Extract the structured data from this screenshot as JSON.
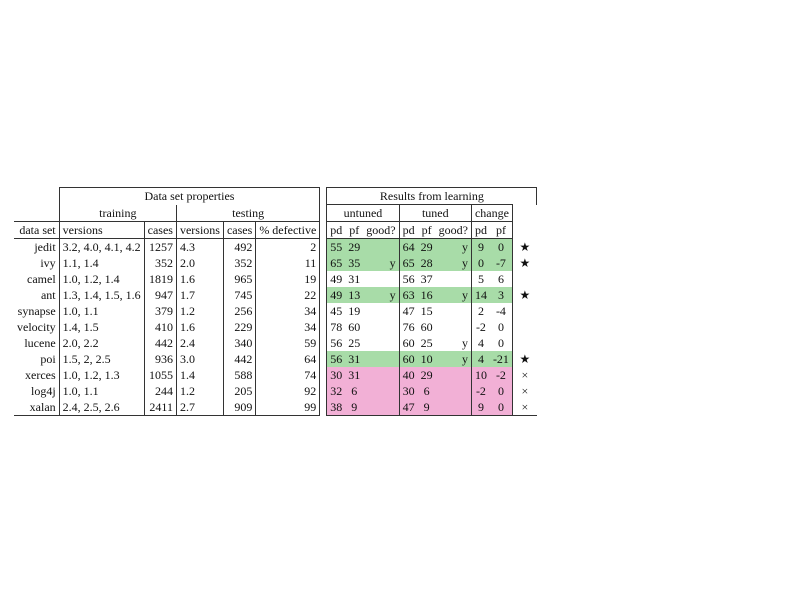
{
  "headers": {
    "data_set_properties": "Data set properties",
    "results_from_learning": "Results from learning",
    "training": "training",
    "testing": "testing",
    "untuned": "untuned",
    "tuned": "tuned",
    "change": "change",
    "data_set": "data set",
    "versions": "versions",
    "cases": "cases",
    "pct_defective": "% defective",
    "pd": "pd",
    "pf": "pf",
    "good": "good?"
  },
  "row_colors": {
    "good": "#a8dca8",
    "bad": "#f2b0d6"
  },
  "rows": [
    {
      "ds": "jedit",
      "tr_versions": "3.2, 4.0, 4.1, 4.2",
      "tr_cases": "1257",
      "te_versions": "4.3",
      "te_cases": "492",
      "defective": "2",
      "u_pd": "55",
      "u_pf": "29",
      "u_good": "",
      "t_pd": "64",
      "t_pf": "29",
      "t_good": "y",
      "c_pd": "9",
      "c_pf": "0",
      "mark": "★",
      "status": "good"
    },
    {
      "ds": "ivy",
      "tr_versions": "1.1, 1.4",
      "tr_cases": "352",
      "te_versions": "2.0",
      "te_cases": "352",
      "defective": "11",
      "u_pd": "65",
      "u_pf": "35",
      "u_good": "y",
      "t_pd": "65",
      "t_pf": "28",
      "t_good": "y",
      "c_pd": "0",
      "c_pf": "-7",
      "mark": "★",
      "status": "good"
    },
    {
      "ds": "camel",
      "tr_versions": "1.0, 1.2, 1.4",
      "tr_cases": "1819",
      "te_versions": "1.6",
      "te_cases": "965",
      "defective": "19",
      "u_pd": "49",
      "u_pf": "31",
      "u_good": "",
      "t_pd": "56",
      "t_pf": "37",
      "t_good": "",
      "c_pd": "5",
      "c_pf": "6",
      "mark": "",
      "status": "none"
    },
    {
      "ds": "ant",
      "tr_versions": "1.3, 1.4, 1.5, 1.6",
      "tr_cases": "947",
      "te_versions": "1.7",
      "te_cases": "745",
      "defective": "22",
      "u_pd": "49",
      "u_pf": "13",
      "u_good": "y",
      "t_pd": "63",
      "t_pf": "16",
      "t_good": "y",
      "c_pd": "14",
      "c_pf": "3",
      "mark": "★",
      "status": "good"
    },
    {
      "ds": "synapse",
      "tr_versions": "1.0, 1.1",
      "tr_cases": "379",
      "te_versions": "1.2",
      "te_cases": "256",
      "defective": "34",
      "u_pd": "45",
      "u_pf": "19",
      "u_good": "",
      "t_pd": "47",
      "t_pf": "15",
      "t_good": "",
      "c_pd": "2",
      "c_pf": "-4",
      "mark": "",
      "status": "none"
    },
    {
      "ds": "velocity",
      "tr_versions": "1.4, 1.5",
      "tr_cases": "410",
      "te_versions": "1.6",
      "te_cases": "229",
      "defective": "34",
      "u_pd": "78",
      "u_pf": "60",
      "u_good": "",
      "t_pd": "76",
      "t_pf": "60",
      "t_good": "",
      "c_pd": "-2",
      "c_pf": "0",
      "mark": "",
      "status": "none"
    },
    {
      "ds": "lucene",
      "tr_versions": "2.0, 2.2",
      "tr_cases": "442",
      "te_versions": "2.4",
      "te_cases": "340",
      "defective": "59",
      "u_pd": "56",
      "u_pf": "25",
      "u_good": "",
      "t_pd": "60",
      "t_pf": "25",
      "t_good": "y",
      "c_pd": "4",
      "c_pf": "0",
      "mark": "",
      "status": "none"
    },
    {
      "ds": "poi",
      "tr_versions": "1.5, 2, 2.5",
      "tr_cases": "936",
      "te_versions": "3.0",
      "te_cases": "442",
      "defective": "64",
      "u_pd": "56",
      "u_pf": "31",
      "u_good": "",
      "t_pd": "60",
      "t_pf": "10",
      "t_good": "y",
      "c_pd": "4",
      "c_pf": "-21",
      "mark": "★",
      "status": "good"
    },
    {
      "ds": "xerces",
      "tr_versions": "1.0, 1.2, 1.3",
      "tr_cases": "1055",
      "te_versions": "1.4",
      "te_cases": "588",
      "defective": "74",
      "u_pd": "30",
      "u_pf": "31",
      "u_good": "",
      "t_pd": "40",
      "t_pf": "29",
      "t_good": "",
      "c_pd": "10",
      "c_pf": "-2",
      "mark": "×",
      "status": "bad"
    },
    {
      "ds": "log4j",
      "tr_versions": "1.0, 1.1",
      "tr_cases": "244",
      "te_versions": "1.2",
      "te_cases": "205",
      "defective": "92",
      "u_pd": "32",
      "u_pf": "6",
      "u_good": "",
      "t_pd": "30",
      "t_pf": "6",
      "t_good": "",
      "c_pd": "-2",
      "c_pf": "0",
      "mark": "×",
      "status": "bad"
    },
    {
      "ds": "xalan",
      "tr_versions": "2.4, 2.5, 2.6",
      "tr_cases": "2411",
      "te_versions": "2.7",
      "te_cases": "909",
      "defective": "99",
      "u_pd": "38",
      "u_pf": "9",
      "u_good": "",
      "t_pd": "47",
      "t_pf": "9",
      "t_good": "",
      "c_pd": "9",
      "c_pf": "0",
      "mark": "×",
      "status": "bad"
    }
  ]
}
